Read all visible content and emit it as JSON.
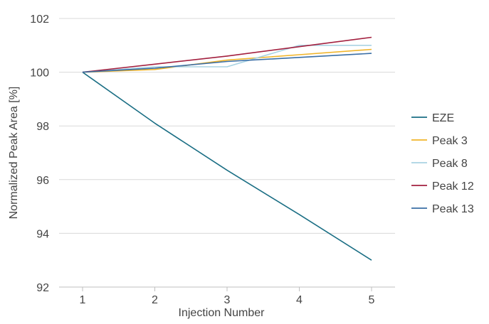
{
  "chart_data": {
    "type": "line",
    "title": "",
    "xlabel": "Injection Number",
    "ylabel": "Normalized Peak Area [%]",
    "x": [
      1,
      2,
      3,
      4,
      5
    ],
    "xticks": [
      "1",
      "2",
      "3",
      "4",
      "5"
    ],
    "ylim": [
      92,
      102
    ],
    "yticks": [
      "92",
      "94",
      "96",
      "98",
      "100",
      "102"
    ],
    "grid": "horizontal",
    "legend_position": "right",
    "series": [
      {
        "name": "EZE",
        "color": "#1a6e84",
        "values": [
          100.0,
          98.1,
          96.35,
          94.7,
          93.0
        ]
      },
      {
        "name": "Peak 3",
        "color": "#f0b429",
        "values": [
          100.0,
          100.1,
          100.45,
          100.65,
          100.85
        ]
      },
      {
        "name": "Peak 8",
        "color": "#a9d3e3",
        "values": [
          100.0,
          100.2,
          100.2,
          101.0,
          101.0
        ]
      },
      {
        "name": "Peak 12",
        "color": "#a3203f",
        "values": [
          100.0,
          100.3,
          100.6,
          100.95,
          101.3
        ]
      },
      {
        "name": "Peak 13",
        "color": "#3a6ea5",
        "values": [
          100.0,
          100.15,
          100.4,
          100.55,
          100.7
        ]
      }
    ]
  }
}
